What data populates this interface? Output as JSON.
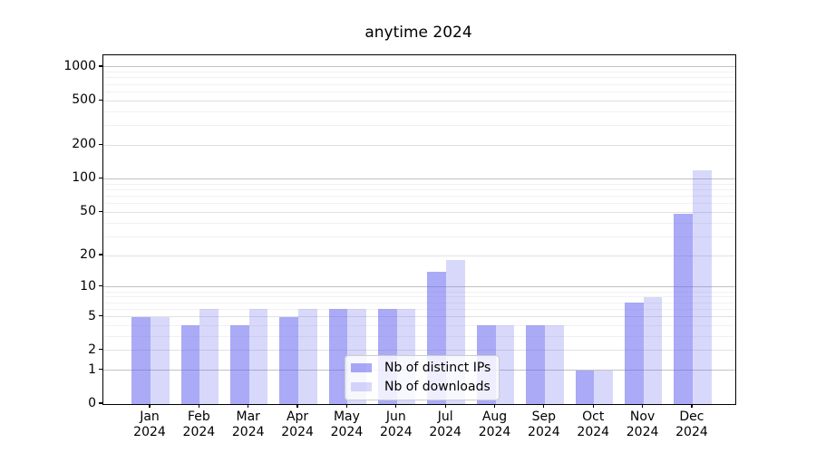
{
  "chart_data": {
    "type": "bar",
    "title": "anytime 2024",
    "months": [
      "Jan",
      "Feb",
      "Mar",
      "Apr",
      "May",
      "Jun",
      "Jul",
      "Aug",
      "Sep",
      "Oct",
      "Nov",
      "Dec"
    ],
    "year_label": "2024",
    "yscale": "log10(1+y)",
    "ylim": [
      0,
      1280
    ],
    "yticks": [
      0,
      1,
      2,
      5,
      10,
      20,
      50,
      100,
      200,
      500,
      1000
    ],
    "grid": {
      "major": [
        1,
        10,
        100,
        1000
      ],
      "mid": [
        2,
        5,
        20,
        50,
        200,
        500
      ],
      "minor": [
        3,
        4,
        6,
        7,
        8,
        9,
        30,
        40,
        60,
        70,
        80,
        90,
        300,
        400,
        600,
        700,
        800,
        900
      ]
    },
    "series": [
      {
        "name": "Nb of distinct IPs",
        "color": "#6464f0",
        "alpha": 0.55,
        "values": [
          5,
          4,
          4,
          5,
          6,
          6,
          14,
          4,
          4,
          1,
          7,
          48
        ]
      },
      {
        "name": "Nb of downloads",
        "color": "#6464f0",
        "alpha": 0.25,
        "values": [
          5,
          6,
          6,
          6,
          6,
          6,
          18,
          4,
          4,
          1,
          8,
          120
        ]
      }
    ],
    "colors": {
      "major_grid": "#c2c2c2",
      "mid_grid": "#e1e1e1",
      "minor_grid": "#f1f1f1",
      "spine": "#000000"
    },
    "legend_position": "lower center"
  }
}
